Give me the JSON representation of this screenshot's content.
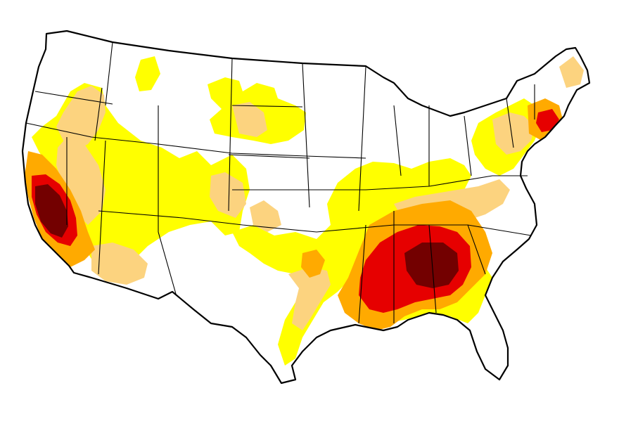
{
  "map": {
    "region": "contiguous-united-states",
    "background": "#ffffff",
    "border_color": "#000000",
    "drought_colors": {
      "yellow": "#ffff00",
      "tan": "#fcd37f",
      "orange": "#ffaa00",
      "red": "#e60000",
      "dark_red": "#730000"
    }
  }
}
